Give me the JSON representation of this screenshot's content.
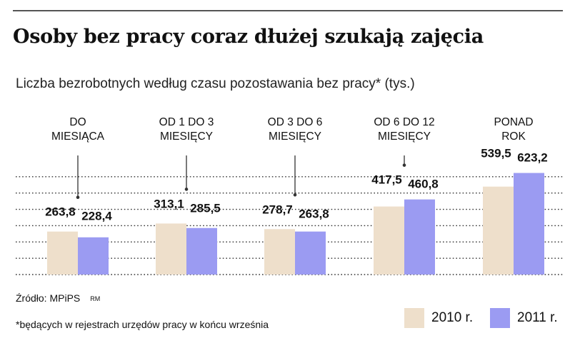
{
  "title": "Osoby bez pracy coraz dłużej szukają zajęcia",
  "subtitle": "Liczba bezrobotnych według czasu pozostawania bez pracy* (tys.)",
  "source": "Źródło: MPiPS",
  "credit": "RM",
  "footnote": "*będących w rejestrach urzędów pracy w końcu września",
  "colors": {
    "s2010": "#eedfcb",
    "s2011": "#9b9bf2",
    "grid": "#333333",
    "pointer": "#333333"
  },
  "chart_data": {
    "type": "bar",
    "title": "Osoby bez pracy coraz dłużej szukają zajęcia",
    "subtitle": "Liczba bezrobotnych według czasu pozostawania bez pracy* (tys.)",
    "categories": [
      [
        "DO",
        "MIESIĄCA"
      ],
      [
        "OD 1 DO 3",
        "MIESIĘCY"
      ],
      [
        "OD 3 DO 6",
        "MIESIĘCY"
      ],
      [
        "OD 6 DO 12",
        "MIESIĘCY"
      ],
      [
        "PONAD",
        "ROK"
      ]
    ],
    "series": [
      {
        "name": "2010 r.",
        "values": [
          263.8,
          313.1,
          278.7,
          417.5,
          539.5
        ],
        "labels": [
          "263,8",
          "313,1",
          "278,7",
          "417,5",
          "539,5"
        ]
      },
      {
        "name": "2011 r.",
        "values": [
          228.4,
          285.5,
          263.8,
          460.8,
          623.2
        ],
        "labels": [
          "228,4",
          "285,5",
          "263,8",
          "460,8",
          "623,2"
        ]
      }
    ],
    "ylim": [
      0,
      700
    ],
    "grid": true,
    "legend": "bottom-right",
    "xlabel": "",
    "ylabel": ""
  }
}
